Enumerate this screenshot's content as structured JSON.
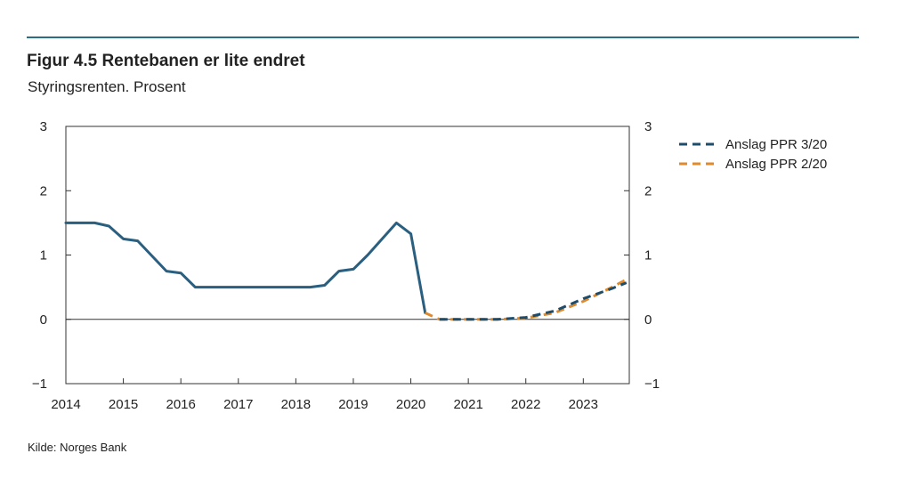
{
  "figure": {
    "title": "Figur 4.5 Rentebanen er lite endret",
    "subtitle": "Styringsrenten. Prosent",
    "source": "Kilde: Norges Bank"
  },
  "chart_data": {
    "type": "line",
    "title": "Figur 4.5 Rentebanen er lite endret",
    "subtitle": "Styringsrenten. Prosent",
    "xlabel": "",
    "ylabel": "",
    "xlim": [
      2014.0,
      2023.8
    ],
    "ylim": [
      -1,
      3
    ],
    "x_ticks": [
      2014,
      2015,
      2016,
      2017,
      2018,
      2019,
      2020,
      2021,
      2022,
      2023
    ],
    "y_ticks": [
      3,
      2,
      1,
      0,
      -1
    ],
    "y_tick_labels": [
      "3",
      "2",
      "1",
      "0",
      "−1"
    ],
    "grid": false,
    "zero_line": true,
    "legend_position": "top-right, outside plot",
    "series": [
      {
        "name": "",
        "style": "solid",
        "color": "#2a5f7f",
        "x": [
          2014.0,
          2014.5,
          2014.75,
          2015.0,
          2015.25,
          2015.75,
          2016.0,
          2016.25,
          2017.0,
          2018.0,
          2018.25,
          2018.5,
          2018.75,
          2019.0,
          2019.25,
          2019.5,
          2019.75,
          2020.0,
          2020.25
        ],
        "values": [
          1.5,
          1.5,
          1.45,
          1.25,
          1.22,
          0.75,
          0.72,
          0.5,
          0.5,
          0.5,
          0.5,
          0.53,
          0.75,
          0.78,
          1.0,
          1.25,
          1.5,
          1.33,
          0.1
        ]
      },
      {
        "name": "Anslag PPR 2/20",
        "style": "dashed",
        "color": "#e08a2c",
        "x": [
          2020.25,
          2020.5,
          2021.0,
          2021.5,
          2022.0,
          2022.5,
          2023.0,
          2023.5,
          2023.75
        ],
        "values": [
          0.1,
          0.0,
          0.0,
          0.0,
          0.02,
          0.1,
          0.28,
          0.5,
          0.62
        ]
      },
      {
        "name": "Anslag PPR 3/20",
        "style": "dashed",
        "color": "#1e4d6b",
        "x": [
          2020.5,
          2021.0,
          2021.5,
          2022.0,
          2022.5,
          2023.0,
          2023.5,
          2023.75
        ],
        "values": [
          0.0,
          0.0,
          0.0,
          0.03,
          0.13,
          0.32,
          0.48,
          0.57
        ]
      }
    ],
    "legend": [
      {
        "label": "Anslag PPR 3/20",
        "color": "#1e4d6b"
      },
      {
        "label": "Anslag PPR 2/20",
        "color": "#e08a2c"
      }
    ]
  }
}
